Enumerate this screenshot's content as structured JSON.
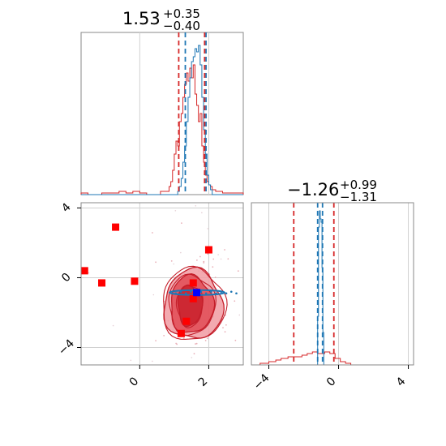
{
  "chart_data": [
    {
      "type": "histogram",
      "panel": "x-marginal",
      "title": {
        "value": "1.53",
        "plus": "+0.35",
        "minus": "−0.40"
      },
      "xlim": [
        -1.7,
        3.0
      ],
      "grid": true,
      "series": [
        {
          "color": "#1f77b4",
          "bins": [
            [
              -1.7,
              0
            ],
            [
              1.05,
              0
            ],
            [
              1.1,
              0.02
            ],
            [
              1.15,
              0.05
            ],
            [
              1.2,
              0.1
            ],
            [
              1.25,
              0.2
            ],
            [
              1.3,
              0.3
            ],
            [
              1.35,
              0.45
            ],
            [
              1.4,
              0.6
            ],
            [
              1.45,
              0.72
            ],
            [
              1.5,
              0.82
            ],
            [
              1.55,
              0.85
            ],
            [
              1.6,
              0.9
            ],
            [
              1.65,
              0.88
            ],
            [
              1.7,
              0.92
            ],
            [
              1.75,
              0.8
            ],
            [
              1.8,
              0.6
            ],
            [
              1.85,
              0.4
            ],
            [
              1.9,
              0.25
            ],
            [
              1.95,
              0.12
            ],
            [
              2.0,
              0.06
            ],
            [
              2.05,
              0.03
            ],
            [
              2.1,
              0
            ],
            [
              3.0,
              0
            ]
          ],
          "quantiles": [
            1.32,
            1.92
          ]
        },
        {
          "color": "#d62728",
          "bins": [
            [
              -1.7,
              0.01
            ],
            [
              -1.5,
              0
            ],
            [
              -1.1,
              0.01
            ],
            [
              -0.6,
              0.02
            ],
            [
              -0.4,
              0.01
            ],
            [
              -0.2,
              0.02
            ],
            [
              0,
              0.01
            ],
            [
              0.2,
              0.0
            ],
            [
              0.6,
              0.02
            ],
            [
              0.85,
              0.05
            ],
            [
              0.9,
              0.08
            ],
            [
              0.95,
              0.15
            ],
            [
              1.0,
              0.25
            ],
            [
              1.05,
              0.33
            ],
            [
              1.1,
              0.3
            ],
            [
              1.15,
              0.45
            ],
            [
              1.2,
              0.5
            ],
            [
              1.25,
              0.6
            ],
            [
              1.3,
              0.68
            ],
            [
              1.35,
              0.75
            ],
            [
              1.4,
              0.7
            ],
            [
              1.45,
              0.78
            ],
            [
              1.5,
              0.72
            ],
            [
              1.55,
              0.8
            ],
            [
              1.6,
              0.62
            ],
            [
              1.65,
              0.55
            ],
            [
              1.7,
              0.45
            ],
            [
              1.75,
              0.5
            ],
            [
              1.8,
              0.3
            ],
            [
              1.85,
              0.2
            ],
            [
              1.9,
              0.12
            ],
            [
              1.95,
              0.08
            ],
            [
              2.0,
              0.06
            ],
            [
              2.05,
              0.05
            ],
            [
              2.1,
              0.03
            ],
            [
              2.2,
              0.02
            ],
            [
              2.4,
              0.01
            ],
            [
              2.7,
              0.01
            ],
            [
              3.0,
              0
            ]
          ],
          "quantiles": [
            1.13,
            1.88
          ]
        }
      ]
    },
    {
      "type": "scatter",
      "panel": "joint",
      "xlim": [
        -1.7,
        3.0
      ],
      "ylim": [
        -5.0,
        4.3
      ],
      "xticks": [
        0,
        2
      ],
      "yticks": [
        4,
        0,
        -4
      ],
      "grid": true,
      "red_points": [
        [
          -0.7,
          2.9
        ],
        [
          2.0,
          1.6
        ],
        [
          -1.6,
          0.4
        ],
        [
          -1.1,
          -0.3
        ],
        [
          -0.15,
          -0.2
        ],
        [
          1.55,
          -0.3
        ],
        [
          1.55,
          -1.2
        ],
        [
          1.35,
          -2.5
        ],
        [
          1.2,
          -3.2
        ]
      ],
      "blue_points": [
        [
          1.65,
          -0.85
        ]
      ],
      "blue_band": {
        "x": [
          0.9,
          2.8
        ],
        "y": -0.85
      },
      "red_contours": [
        {
          "center": [
            1.55,
            -1.55
          ],
          "rx": 0.85,
          "ry": 2.0,
          "level": "outer"
        },
        {
          "center": [
            1.5,
            -1.55
          ],
          "rx": 0.62,
          "ry": 1.65,
          "level": "middle"
        },
        {
          "center": [
            1.45,
            -1.6
          ],
          "rx": 0.35,
          "ry": 1.15,
          "level": "inner"
        }
      ]
    },
    {
      "type": "histogram",
      "panel": "y-marginal",
      "title": {
        "value": "−1.26",
        "plus": "+0.99",
        "minus": "−1.31"
      },
      "xlim": [
        -5.0,
        4.3
      ],
      "xticks": [
        -4,
        0,
        4
      ],
      "grid": true,
      "series": [
        {
          "color": "#1f77b4",
          "bins": [
            [
              -5,
              0
            ],
            [
              -1.25,
              0
            ],
            [
              -1.2,
              0.3
            ],
            [
              -1.15,
              0.85
            ],
            [
              -1.1,
              0.95
            ],
            [
              -1.05,
              0.9
            ],
            [
              -1.0,
              0.88
            ],
            [
              -0.95,
              0.6
            ],
            [
              -0.9,
              0.2
            ],
            [
              -0.85,
              0
            ],
            [
              4.3,
              0
            ]
          ],
          "quantiles": [
            -1.2,
            -0.92
          ]
        },
        {
          "color": "#d62728",
          "bins": [
            [
              -5,
              0
            ],
            [
              -4.5,
              0.01
            ],
            [
              -4.0,
              0.02
            ],
            [
              -3.6,
              0.03
            ],
            [
              -3.3,
              0.04
            ],
            [
              -2.9,
              0.05
            ],
            [
              -2.5,
              0.05
            ],
            [
              -2.1,
              0.06
            ],
            [
              -1.8,
              0.07
            ],
            [
              -1.5,
              0.08
            ],
            [
              -1.2,
              0.07
            ],
            [
              -0.8,
              0.08
            ],
            [
              -0.5,
              0.07
            ],
            [
              -0.2,
              0.04
            ],
            [
              0.1,
              0.02
            ],
            [
              0.4,
              0.01
            ],
            [
              0.7,
              0
            ],
            [
              4.3,
              0
            ]
          ],
          "quantiles": [
            -2.57,
            -0.27
          ]
        }
      ]
    }
  ]
}
